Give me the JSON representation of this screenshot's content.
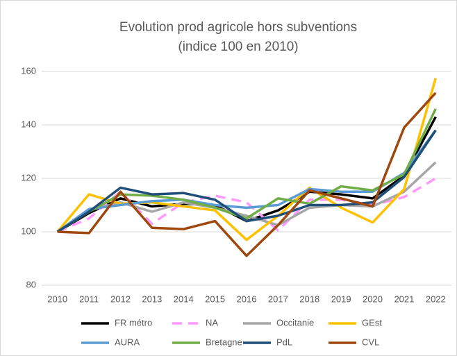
{
  "chart_data": {
    "type": "line",
    "title": "Evolution prod agricole hors subventions",
    "subtitle": "(indice 100 en 2010)",
    "categories": [
      "2010",
      "2011",
      "2012",
      "2013",
      "2014",
      "2015",
      "2016",
      "2017",
      "2018",
      "2019",
      "2020",
      "2021",
      "2022"
    ],
    "ylim": [
      80,
      160
    ],
    "yticks": [
      80,
      100,
      120,
      140,
      160
    ],
    "grid": true,
    "legend": "bottom",
    "series": [
      {
        "name": "FR métro",
        "color": "#000000",
        "values": [
          100,
          107,
          112.5,
          109.5,
          110.5,
          110,
          104,
          108,
          115,
          114,
          112.5,
          121,
          143
        ]
      },
      {
        "name": "NA",
        "color": "#ff99ff",
        "style": "dashed",
        "values": [
          100,
          105,
          115,
          103,
          111,
          113.5,
          111,
          100.5,
          112,
          112,
          110,
          113,
          120
        ]
      },
      {
        "name": "Occitanie",
        "color": "#a6a6a6",
        "values": [
          100,
          108,
          111,
          107.5,
          111,
          109,
          106,
          102.5,
          109,
          110,
          109.5,
          115,
          126
        ]
      },
      {
        "name": "GEst",
        "color": "#ffc000",
        "values": [
          100,
          114,
          110.5,
          111,
          109.5,
          108,
          97,
          106,
          116.5,
          109,
          103.5,
          116,
          157.5
        ]
      },
      {
        "name": "AURA",
        "color": "#5b9bd5",
        "values": [
          100,
          108.5,
          110,
          111.5,
          112,
          110,
          109,
          110,
          116,
          115,
          115,
          122,
          138
        ]
      },
      {
        "name": "Bretagne",
        "color": "#70ad47",
        "values": [
          100,
          107.5,
          114,
          113.5,
          112,
          109,
          105,
          112.5,
          110.5,
          117,
          115.5,
          121.5,
          146
        ]
      },
      {
        "name": "PdL",
        "color": "#1f4e79",
        "values": [
          100,
          107.5,
          116.5,
          114,
          114.5,
          112,
          104,
          106,
          110,
          110,
          111,
          120.5,
          138
        ]
      },
      {
        "name": "CVL",
        "color": "#9e480e",
        "values": [
          100,
          99.5,
          115,
          101.5,
          101,
          104,
          91,
          102.5,
          115.5,
          112.5,
          109.5,
          139,
          152
        ]
      }
    ]
  }
}
